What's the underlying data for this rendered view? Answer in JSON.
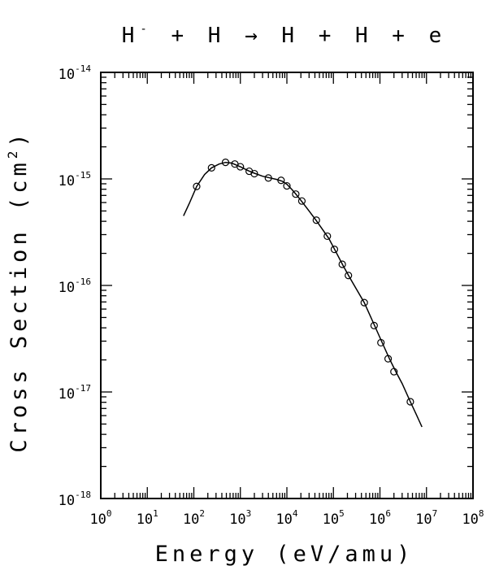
{
  "chart_data": {
    "type": "scatter",
    "title": {
      "parts": [
        "H",
        "-",
        " + H → H + H + e"
      ]
    },
    "xlabel": "Energy (eV/amu)",
    "ylabel": {
      "prefix": "Cross Section (cm",
      "sup": "2",
      "suffix": ")"
    },
    "x_scale": "log",
    "y_scale": "log",
    "xlim": [
      1,
      100000000
    ],
    "ylim": [
      1e-18,
      1e-14
    ],
    "x_ticks": [
      {
        "base": "10",
        "exp": "0"
      },
      {
        "base": "10",
        "exp": "1"
      },
      {
        "base": "10",
        "exp": "2"
      },
      {
        "base": "10",
        "exp": "3"
      },
      {
        "base": "10",
        "exp": "4"
      },
      {
        "base": "10",
        "exp": "5"
      },
      {
        "base": "10",
        "exp": "6"
      },
      {
        "base": "10",
        "exp": "7"
      },
      {
        "base": "10",
        "exp": "8"
      }
    ],
    "y_ticks": [
      {
        "base": "10",
        "exp": "-18"
      },
      {
        "base": "10",
        "exp": "-17"
      },
      {
        "base": "10",
        "exp": "-16"
      },
      {
        "base": "10",
        "exp": "-15"
      },
      {
        "base": "10",
        "exp": "-14"
      }
    ],
    "series": [
      {
        "kind": "points",
        "marker": "open-circle",
        "x": [
          115,
          240,
          480,
          760,
          1000,
          1550,
          2000,
          4000,
          7500,
          10000,
          15500,
          21000,
          43000,
          74000,
          105000,
          155000,
          210000,
          460000,
          750000,
          1050000,
          1500000,
          2000000,
          4500000
        ],
        "y": [
          8.5e-16,
          1.27e-15,
          1.43e-15,
          1.38e-15,
          1.3e-15,
          1.18e-15,
          1.12e-15,
          1.02e-15,
          9.7e-16,
          8.6e-16,
          7.2e-16,
          6.2e-16,
          4.1e-16,
          2.9e-16,
          2.18e-16,
          1.58e-16,
          1.24e-16,
          6.9e-17,
          4.2e-17,
          2.9e-17,
          2.05e-17,
          1.55e-17,
          8.1e-18
        ]
      },
      {
        "kind": "line",
        "x": [
          60,
          80,
          115,
          170,
          240,
          350,
          480,
          650,
          1000,
          1500,
          2000,
          3000,
          4000,
          6000,
          8000,
          10000,
          13000,
          16000,
          20000,
          30000,
          43000,
          60000,
          80000,
          110000,
          160000,
          220000,
          300000,
          460000,
          750000,
          1100000,
          1600000,
          2200000,
          3000000,
          4500000,
          6000000,
          8000000
        ],
        "y": [
          4.5e-16,
          5.9e-16,
          8.5e-16,
          1.1e-15,
          1.27e-15,
          1.38e-15,
          1.43e-15,
          1.41e-15,
          1.3e-15,
          1.19e-15,
          1.13e-15,
          1.06e-15,
          1.03e-15,
          9.9e-16,
          9.5e-16,
          8.9e-16,
          7.9e-16,
          7.1e-16,
          6.3e-16,
          5e-16,
          4.05e-16,
          3.3e-16,
          2.75e-16,
          2.12e-16,
          1.55e-16,
          1.2e-16,
          9.5e-17,
          6.9e-17,
          4.3e-17,
          2.95e-17,
          2.05e-17,
          1.55e-17,
          1.2e-17,
          8.1e-18,
          6.2e-18,
          4.7e-18
        ]
      }
    ],
    "grid": false,
    "legend": "none"
  }
}
